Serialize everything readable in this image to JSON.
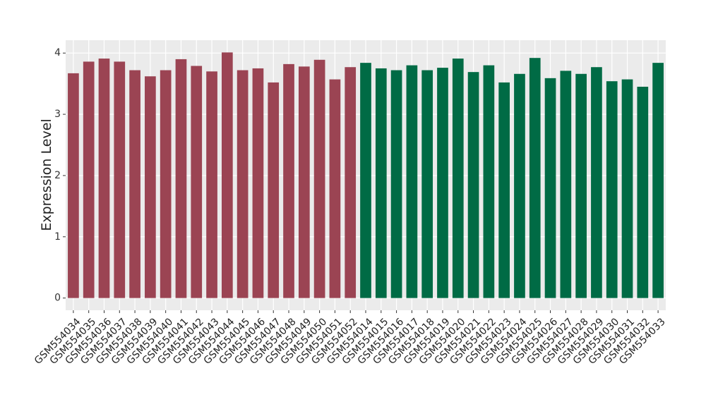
{
  "chart_data": {
    "type": "bar",
    "y_label": "Expression Level",
    "categories": [
      "GSM554034",
      "GSM554035",
      "GSM554036",
      "GSM554037",
      "GSM554038",
      "GSM554039",
      "GSM554040",
      "GSM554041",
      "GSM554042",
      "GSM554043",
      "GSM554044",
      "GSM554045",
      "GSM554046",
      "GSM554047",
      "GSM554048",
      "GSM554049",
      "GSM554050",
      "GSM554051",
      "GSM554052",
      "GSM554014",
      "GSM554015",
      "GSM554016",
      "GSM554017",
      "GSM554018",
      "GSM554019",
      "GSM554020",
      "GSM554021",
      "GSM554022",
      "GSM554023",
      "GSM554024",
      "GSM554025",
      "GSM554026",
      "GSM554027",
      "GSM554028",
      "GSM554029",
      "GSM554030",
      "GSM554031",
      "GSM554032",
      "GSM554033"
    ],
    "values": [
      3.67,
      3.86,
      3.91,
      3.86,
      3.72,
      3.62,
      3.72,
      3.9,
      3.79,
      3.7,
      4.01,
      3.72,
      3.75,
      3.52,
      3.82,
      3.78,
      3.89,
      3.57,
      3.77,
      3.84,
      3.75,
      3.72,
      3.8,
      3.72,
      3.76,
      3.91,
      3.69,
      3.8,
      3.52,
      3.66,
      3.92,
      3.59,
      3.71,
      3.66,
      3.77,
      3.54,
      3.57,
      3.45,
      3.84
    ],
    "colors": [
      "#9b4453",
      "#9b4453",
      "#9b4453",
      "#9b4453",
      "#9b4453",
      "#9b4453",
      "#9b4453",
      "#9b4453",
      "#9b4453",
      "#9b4453",
      "#9b4453",
      "#9b4453",
      "#9b4453",
      "#9b4453",
      "#9b4453",
      "#9b4453",
      "#9b4453",
      "#9b4453",
      "#9b4453",
      "#006b45",
      "#006b45",
      "#006b45",
      "#006b45",
      "#006b45",
      "#006b45",
      "#006b45",
      "#006b45",
      "#006b45",
      "#006b45",
      "#006b45",
      "#006b45",
      "#006b45",
      "#006b45",
      "#006b45",
      "#006b45",
      "#006b45",
      "#006b45",
      "#006b45",
      "#006b45"
    ],
    "ylim": [
      -0.2,
      4.21
    ],
    "yticks": [
      0,
      1,
      2,
      3,
      4
    ],
    "grid": true
  }
}
